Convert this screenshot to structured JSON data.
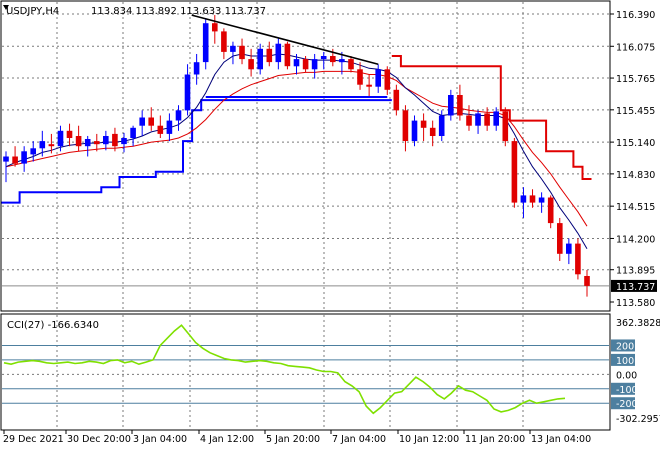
{
  "chart_data": [
    {
      "type": "candlestick",
      "symbol_label": "USDJPY,H4",
      "ohlc_label": "113.834 113.892 113.633 113.737",
      "price_labels": [
        "116.390",
        "116.075",
        "115.765",
        "115.455",
        "115.140",
        "114.830",
        "114.515",
        "114.200",
        "113.895",
        "113.580"
      ],
      "current_price_label": "113.737",
      "current_price": 113.737,
      "ylim": [
        113.58,
        116.39
      ],
      "x_labels": [
        "29 Dec 2021",
        "30 Dec 20:00",
        "3 Jan 04:00",
        "4 Jan 12:00",
        "5 Jan 20:00",
        "7 Jan 04:00",
        "10 Jan 12:00",
        "11 Jan 20:00",
        "13 Jan 04:00"
      ],
      "candles": [
        [
          114.95,
          115.05,
          114.75,
          115.0
        ],
        [
          115.0,
          115.1,
          114.9,
          114.93
        ],
        [
          114.93,
          115.1,
          114.85,
          115.05
        ],
        [
          115.02,
          115.15,
          114.95,
          115.08
        ],
        [
          115.08,
          115.25,
          115.0,
          115.15
        ],
        [
          115.12,
          115.22,
          115.03,
          115.1
        ],
        [
          115.1,
          115.3,
          115.05,
          115.25
        ],
        [
          115.25,
          115.32,
          115.1,
          115.18
        ],
        [
          115.2,
          115.3,
          115.05,
          115.1
        ],
        [
          115.1,
          115.2,
          115.0,
          115.17
        ],
        [
          115.15,
          115.22,
          115.05,
          115.12
        ],
        [
          115.12,
          115.25,
          115.06,
          115.2
        ],
        [
          115.22,
          115.28,
          115.05,
          115.1
        ],
        [
          115.12,
          115.23,
          115.04,
          115.18
        ],
        [
          115.18,
          115.3,
          115.1,
          115.28
        ],
        [
          115.3,
          115.45,
          115.2,
          115.38
        ],
        [
          115.38,
          115.48,
          115.25,
          115.3
        ],
        [
          115.3,
          115.4,
          115.18,
          115.22
        ],
        [
          115.22,
          115.42,
          115.15,
          115.35
        ],
        [
          115.35,
          115.5,
          115.25,
          115.45
        ],
        [
          115.45,
          115.9,
          115.4,
          115.8
        ],
        [
          115.8,
          116.0,
          115.7,
          115.92
        ],
        [
          115.92,
          116.35,
          115.85,
          116.3
        ],
        [
          116.3,
          116.38,
          116.1,
          116.22
        ],
        [
          116.22,
          116.25,
          115.95,
          116.02
        ],
        [
          116.02,
          116.12,
          115.9,
          116.08
        ],
        [
          116.08,
          116.15,
          115.9,
          115.95
        ],
        [
          115.95,
          116.05,
          115.78,
          115.85
        ],
        [
          115.85,
          116.1,
          115.8,
          116.05
        ],
        [
          116.05,
          116.12,
          115.88,
          115.92
        ],
        [
          115.92,
          116.15,
          115.85,
          116.1
        ],
        [
          116.1,
          116.12,
          115.85,
          115.88
        ],
        [
          115.88,
          116.0,
          115.8,
          115.95
        ],
        [
          115.95,
          115.98,
          115.82,
          115.85
        ],
        [
          115.85,
          116.0,
          115.76,
          115.95
        ],
        [
          115.95,
          116.02,
          115.85,
          115.98
        ],
        [
          115.98,
          116.05,
          115.88,
          115.92
        ],
        [
          115.92,
          116.02,
          115.8,
          115.95
        ],
        [
          115.95,
          115.98,
          115.82,
          115.85
        ],
        [
          115.85,
          115.92,
          115.65,
          115.7
        ],
        [
          115.7,
          115.8,
          115.58,
          115.68
        ],
        [
          115.68,
          115.9,
          115.62,
          115.85
        ],
        [
          115.85,
          115.88,
          115.6,
          115.65
        ],
        [
          115.65,
          115.7,
          115.4,
          115.45
        ],
        [
          115.45,
          115.5,
          115.05,
          115.15
        ],
        [
          115.15,
          115.4,
          115.1,
          115.35
        ],
        [
          115.35,
          115.42,
          115.15,
          115.28
        ],
        [
          115.28,
          115.35,
          115.1,
          115.2
        ],
        [
          115.2,
          115.45,
          115.15,
          115.4
        ],
        [
          115.4,
          115.65,
          115.35,
          115.6
        ],
        [
          115.6,
          115.7,
          115.35,
          115.4
        ],
        [
          115.4,
          115.5,
          115.25,
          115.3
        ],
        [
          115.3,
          115.45,
          115.22,
          115.42
        ],
        [
          115.42,
          115.48,
          115.25,
          115.3
        ],
        [
          115.3,
          115.48,
          115.25,
          115.44
        ],
        [
          115.44,
          115.48,
          115.1,
          115.15
        ],
        [
          115.15,
          115.18,
          114.5,
          114.55
        ],
        [
          114.55,
          114.7,
          114.4,
          114.62
        ],
        [
          114.62,
          114.68,
          114.5,
          114.55
        ],
        [
          114.55,
          114.65,
          114.45,
          114.6
        ],
        [
          114.6,
          114.62,
          114.3,
          114.35
        ],
        [
          114.35,
          114.4,
          113.98,
          114.05
        ],
        [
          114.05,
          114.2,
          113.95,
          114.15
        ],
        [
          114.15,
          114.2,
          113.8,
          113.85
        ],
        [
          113.834,
          113.892,
          113.633,
          113.737
        ]
      ],
      "ma_fast": [
        114.9,
        114.94,
        114.97,
        115.0,
        115.04,
        115.06,
        115.09,
        115.11,
        115.12,
        115.13,
        115.13,
        115.14,
        115.14,
        115.15,
        115.17,
        115.2,
        115.24,
        115.26,
        115.28,
        115.31,
        115.38,
        115.48,
        115.62,
        115.8,
        115.92,
        115.98,
        116.0,
        115.98,
        115.98,
        115.98,
        116.0,
        115.99,
        115.97,
        115.95,
        115.94,
        115.94,
        115.94,
        115.93,
        115.92,
        115.89,
        115.86,
        115.85,
        115.83,
        115.77,
        115.67,
        115.6,
        115.52,
        115.44,
        115.4,
        115.41,
        115.42,
        115.41,
        115.4,
        115.4,
        115.4,
        115.37,
        115.22,
        115.05,
        114.9,
        114.78,
        114.65,
        114.5,
        114.38,
        114.25,
        114.1
      ],
      "ma_slow": [
        114.9,
        114.92,
        114.94,
        114.96,
        114.98,
        115.0,
        115.02,
        115.04,
        115.05,
        115.06,
        115.07,
        115.08,
        115.08,
        115.09,
        115.1,
        115.12,
        115.14,
        115.15,
        115.16,
        115.18,
        115.22,
        115.28,
        115.36,
        115.46,
        115.55,
        115.61,
        115.66,
        115.7,
        115.73,
        115.76,
        115.79,
        115.8,
        115.81,
        115.82,
        115.82,
        115.83,
        115.83,
        115.83,
        115.83,
        115.82,
        115.8,
        115.8,
        115.78,
        115.74,
        115.67,
        115.62,
        115.57,
        115.52,
        115.49,
        115.48,
        115.47,
        115.45,
        115.44,
        115.43,
        115.43,
        115.4,
        115.29,
        115.16,
        115.04,
        114.94,
        114.83,
        114.7,
        114.58,
        114.46,
        114.32
      ],
      "support_step": [
        [
          0,
          114.55
        ],
        [
          1,
          114.55
        ],
        [
          2,
          114.65
        ],
        [
          3,
          114.65
        ],
        [
          4,
          114.65
        ],
        [
          5,
          114.65
        ],
        [
          6,
          114.65
        ],
        [
          7,
          114.65
        ],
        [
          8,
          114.65
        ],
        [
          9,
          114.65
        ],
        [
          10,
          114.65
        ],
        [
          11,
          114.7
        ],
        [
          12,
          114.7
        ],
        [
          13,
          114.8
        ],
        [
          14,
          114.8
        ],
        [
          15,
          114.8
        ],
        [
          16,
          114.8
        ],
        [
          17,
          114.85
        ],
        [
          18,
          114.85
        ],
        [
          19,
          114.85
        ],
        [
          20,
          115.15
        ],
        [
          21,
          115.45
        ],
        [
          22,
          115.55
        ],
        [
          23,
          115.55
        ],
        [
          24,
          115.55
        ],
        [
          25,
          115.55
        ],
        [
          26,
          115.55
        ],
        [
          27,
          115.55
        ],
        [
          28,
          115.55
        ],
        [
          29,
          115.55
        ],
        [
          30,
          115.55
        ],
        [
          31,
          115.55
        ],
        [
          32,
          115.55
        ],
        [
          33,
          115.55
        ],
        [
          34,
          115.55
        ],
        [
          35,
          115.55
        ],
        [
          36,
          115.55
        ],
        [
          37,
          115.55
        ],
        [
          38,
          115.55
        ],
        [
          39,
          115.55
        ],
        [
          40,
          115.55
        ],
        [
          41,
          115.55
        ],
        [
          42,
          115.55
        ]
      ],
      "resistance_step": [
        [
          43,
          115.98
        ],
        [
          44,
          115.88
        ],
        [
          45,
          115.88
        ],
        [
          46,
          115.88
        ],
        [
          47,
          115.88
        ],
        [
          48,
          115.88
        ],
        [
          49,
          115.88
        ],
        [
          50,
          115.88
        ],
        [
          51,
          115.88
        ],
        [
          52,
          115.88
        ],
        [
          53,
          115.88
        ],
        [
          54,
          115.88
        ],
        [
          55,
          115.45
        ],
        [
          56,
          115.35
        ],
        [
          57,
          115.35
        ],
        [
          58,
          115.35
        ],
        [
          59,
          115.35
        ],
        [
          60,
          115.05
        ],
        [
          61,
          115.05
        ],
        [
          62,
          115.05
        ],
        [
          63,
          114.9
        ],
        [
          64,
          114.78
        ]
      ],
      "trendline": [
        [
          22,
          116.35
        ],
        [
          41,
          115.9
        ]
      ],
      "neckline": [
        [
          22,
          115.58
        ],
        [
          42,
          115.58
        ]
      ]
    },
    {
      "type": "line",
      "indicator_label": "CCI(27) -166.6340",
      "axis_labels": [
        "362.3828",
        "200",
        "100",
        "0.00",
        "-100",
        "-200",
        "-302.2957"
      ],
      "highlight_levels": [
        200,
        100,
        -100,
        -200
      ],
      "ylim": [
        -302.2957,
        362.3828
      ],
      "values": [
        80,
        70,
        85,
        90,
        95,
        90,
        80,
        75,
        80,
        85,
        75,
        80,
        90,
        85,
        75,
        95,
        100,
        80,
        90,
        70,
        85,
        100,
        200,
        250,
        300,
        340,
        280,
        220,
        180,
        150,
        130,
        110,
        100,
        95,
        85,
        90,
        95,
        90,
        80,
        75,
        60,
        55,
        50,
        45,
        30,
        20,
        20,
        10,
        -50,
        -80,
        -120,
        -220,
        -270,
        -230,
        -180,
        -130,
        -120,
        -70,
        -20,
        -50,
        -90,
        -140,
        -170,
        -130,
        -80,
        -110,
        -120,
        -150,
        -180,
        -240,
        -260,
        -250,
        -230,
        -200,
        -180,
        -200,
        -190,
        -180,
        -170,
        -166
      ]
    }
  ]
}
